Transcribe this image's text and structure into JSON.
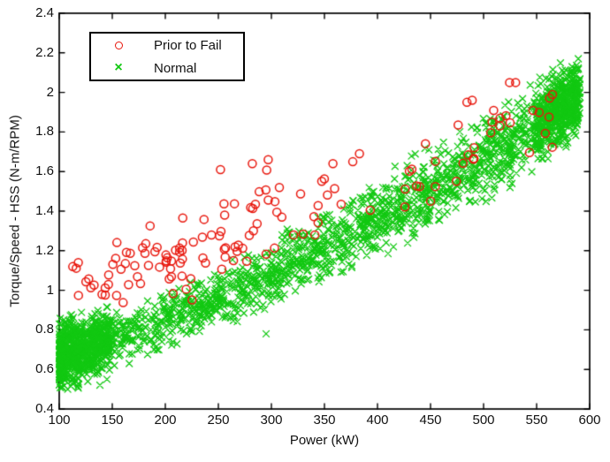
{
  "chart_data": {
    "type": "scatter",
    "title": "",
    "xlabel": "Power (kW)",
    "ylabel": "Torque/Speed - HSS (N-m/RPM)",
    "xlim": [
      100,
      600
    ],
    "ylim": [
      0.4,
      2.4
    ],
    "xticks": [
      100,
      150,
      200,
      250,
      300,
      350,
      400,
      450,
      500,
      550,
      600
    ],
    "yticks": [
      0.4,
      0.6,
      0.8,
      1,
      1.2,
      1.4,
      1.6,
      1.8,
      2,
      2.2,
      2.4
    ],
    "grid": false,
    "axis_color": "#000000",
    "tick_length": 6,
    "legend": {
      "position": "upper-left",
      "border_color": "#000000",
      "background": "#ffffff",
      "entries": [
        {
          "label": "Prior to Fail",
          "marker": "circle",
          "color": "#e8160c"
        },
        {
          "label": "Normal",
          "marker": "x",
          "color": "#12c812"
        }
      ]
    },
    "trend_anchors": [
      [
        100,
        0.7
      ],
      [
        140,
        0.745
      ],
      [
        200,
        0.845
      ],
      [
        250,
        0.95
      ],
      [
        300,
        1.08
      ],
      [
        350,
        1.22
      ],
      [
        400,
        1.37
      ],
      [
        450,
        1.51
      ],
      [
        500,
        1.66
      ],
      [
        540,
        1.79
      ],
      [
        570,
        1.9
      ],
      [
        591,
        1.97
      ]
    ],
    "generator": {
      "seed": 20
    },
    "series": [
      {
        "name": "Prior to Fail",
        "marker": "circle",
        "color": "#e8160c",
        "marker_size": 9,
        "clusters": [
          {
            "count": 92,
            "x_min": 104,
            "x_max": 312,
            "x_pow": 0.95,
            "y_offset": 0.31,
            "y_sigma0": 0.1,
            "y_sigma1": 0.1,
            "y_min": 0.88,
            "y_max": 1.66
          },
          {
            "count": 14,
            "x_min": 316,
            "x_max": 408,
            "x_pow": 1.0,
            "y_offset": 0.24,
            "y_sigma0": 0.12,
            "y_sigma1": 0.12,
            "y_min": 1.28,
            "y_max": 1.7
          },
          {
            "count": 36,
            "x_min": 420,
            "x_max": 566,
            "x_pow": 0.9,
            "y_offset": 0.07,
            "y_sigma0": 0.11,
            "y_sigma1": 0.11,
            "y_min": 1.3,
            "y_max": 2.05
          }
        ],
        "outliers": [
          [
            252,
            1.61
          ],
          [
            282,
            1.64
          ],
          [
            297,
            1.66
          ],
          [
            358,
            1.64
          ],
          [
            383,
            1.69
          ]
        ]
      },
      {
        "name": "Normal",
        "marker": "x",
        "color": "#12c812",
        "marker_size": 7,
        "clusters": [
          {
            "count": 680,
            "x_min": 100,
            "x_max": 148,
            "x_pow": 1.5,
            "y_offset": -0.02,
            "y_sigma0": 0.078,
            "y_sigma1": 0.078,
            "y_min": 0.46,
            "y_max": 0.95
          },
          {
            "count": 1550,
            "x_min": 106,
            "x_max": 584,
            "x_pow": 0.82,
            "y_offset": 0.0,
            "y_sigma0": 0.05,
            "y_sigma1": 0.1,
            "y_min": 0.48,
            "y_max": 2.12
          },
          {
            "count": 430,
            "x_min": 548,
            "x_max": 591,
            "x_pow": 0.75,
            "y_offset": 0.02,
            "y_sigma0": 0.085,
            "y_sigma1": 0.085,
            "y_min": 1.62,
            "y_max": 2.17
          }
        ],
        "outliers": [
          [
            108,
            0.5
          ],
          [
            145,
            0.55
          ],
          [
            152,
            0.62
          ],
          [
            166,
            0.63
          ],
          [
            190,
            0.92
          ],
          [
            197,
            0.95
          ],
          [
            210,
            0.93
          ],
          [
            253,
            0.97
          ],
          [
            295,
            0.78
          ],
          [
            310,
            1.28
          ],
          [
            352,
            1.38
          ],
          [
            405,
            1.52
          ],
          [
            428,
            1.63
          ]
        ]
      }
    ]
  }
}
